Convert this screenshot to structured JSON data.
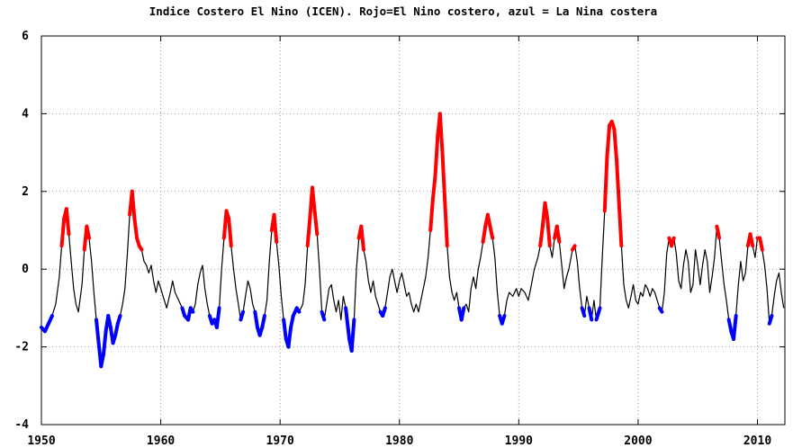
{
  "chart_data": {
    "type": "line",
    "title": "Indice Costero El Nino (ICEN). Rojo=El Nino costero, azul = La Nina costera",
    "xlabel": "",
    "ylabel": "",
    "xlim": [
      1950,
      2012.3
    ],
    "ylim": [
      -4,
      6
    ],
    "x_ticks": [
      1950,
      1960,
      1970,
      1980,
      1990,
      2000,
      2010
    ],
    "y_ticks": [
      -4,
      -2,
      0,
      2,
      4,
      6
    ],
    "x_tick_labels": [
      "1950",
      "1960",
      "1970",
      "1980",
      "1990",
      "2000",
      "2010"
    ],
    "y_tick_labels": [
      "-4",
      "-2",
      "0",
      "2",
      "4",
      "6"
    ],
    "grid": true,
    "colors": {
      "line": "#000000",
      "el_nino": "#ff0000",
      "la_nina": "#0000ff",
      "grid": "#999999"
    },
    "series": [
      {
        "points": [
          [
            1950.0,
            -1.5
          ],
          [
            1950.3,
            -1.6
          ],
          [
            1950.6,
            -1.4
          ],
          [
            1950.9,
            -1.2
          ],
          [
            1951.2,
            -0.9
          ],
          [
            1951.5,
            -0.2
          ],
          [
            1951.7,
            0.6
          ],
          [
            1951.9,
            1.3
          ],
          [
            1952.1,
            1.55
          ],
          [
            1952.3,
            0.9
          ],
          [
            1952.5,
            0.2
          ],
          [
            1952.7,
            -0.5
          ],
          [
            1952.9,
            -0.9
          ],
          [
            1953.1,
            -1.1
          ],
          [
            1953.4,
            -0.4
          ],
          [
            1953.6,
            0.5
          ],
          [
            1953.8,
            1.1
          ],
          [
            1954.0,
            0.8
          ],
          [
            1954.2,
            0.2
          ],
          [
            1954.4,
            -0.6
          ],
          [
            1954.6,
            -1.3
          ],
          [
            1954.8,
            -1.9
          ],
          [
            1955.0,
            -2.5
          ],
          [
            1955.2,
            -2.2
          ],
          [
            1955.4,
            -1.6
          ],
          [
            1955.6,
            -1.2
          ],
          [
            1955.8,
            -1.5
          ],
          [
            1956.0,
            -1.9
          ],
          [
            1956.2,
            -1.7
          ],
          [
            1956.4,
            -1.4
          ],
          [
            1956.6,
            -1.2
          ],
          [
            1956.8,
            -0.9
          ],
          [
            1957.0,
            -0.5
          ],
          [
            1957.2,
            0.4
          ],
          [
            1957.4,
            1.4
          ],
          [
            1957.6,
            2.0
          ],
          [
            1957.8,
            1.3
          ],
          [
            1958.0,
            0.8
          ],
          [
            1958.2,
            0.6
          ],
          [
            1958.4,
            0.5
          ],
          [
            1958.6,
            0.2
          ],
          [
            1958.8,
            0.1
          ],
          [
            1959.0,
            -0.1
          ],
          [
            1959.2,
            0.1
          ],
          [
            1959.4,
            -0.3
          ],
          [
            1959.6,
            -0.6
          ],
          [
            1959.8,
            -0.3
          ],
          [
            1960.0,
            -0.5
          ],
          [
            1960.2,
            -0.7
          ],
          [
            1960.5,
            -1.0
          ],
          [
            1960.8,
            -0.6
          ],
          [
            1961.0,
            -0.3
          ],
          [
            1961.2,
            -0.6
          ],
          [
            1961.5,
            -0.8
          ],
          [
            1961.8,
            -1.0
          ],
          [
            1962.0,
            -1.2
          ],
          [
            1962.3,
            -1.3
          ],
          [
            1962.5,
            -1.0
          ],
          [
            1962.7,
            -1.1
          ],
          [
            1962.9,
            -0.9
          ],
          [
            1963.1,
            -0.4
          ],
          [
            1963.3,
            -0.1
          ],
          [
            1963.5,
            0.1
          ],
          [
            1963.7,
            -0.5
          ],
          [
            1963.9,
            -0.9
          ],
          [
            1964.1,
            -1.2
          ],
          [
            1964.3,
            -1.4
          ],
          [
            1964.5,
            -1.3
          ],
          [
            1964.7,
            -1.5
          ],
          [
            1964.9,
            -1.0
          ],
          [
            1965.1,
            0.0
          ],
          [
            1965.3,
            0.8
          ],
          [
            1965.5,
            1.5
          ],
          [
            1965.7,
            1.3
          ],
          [
            1965.9,
            0.6
          ],
          [
            1966.1,
            0.0
          ],
          [
            1966.3,
            -0.5
          ],
          [
            1966.5,
            -0.9
          ],
          [
            1966.7,
            -1.3
          ],
          [
            1966.9,
            -1.1
          ],
          [
            1967.1,
            -0.7
          ],
          [
            1967.3,
            -0.3
          ],
          [
            1967.5,
            -0.5
          ],
          [
            1967.7,
            -0.9
          ],
          [
            1967.9,
            -1.1
          ],
          [
            1968.1,
            -1.5
          ],
          [
            1968.3,
            -1.7
          ],
          [
            1968.5,
            -1.5
          ],
          [
            1968.7,
            -1.2
          ],
          [
            1968.9,
            -0.8
          ],
          [
            1969.1,
            0.2
          ],
          [
            1969.3,
            1.0
          ],
          [
            1969.5,
            1.4
          ],
          [
            1969.7,
            0.7
          ],
          [
            1969.9,
            0.1
          ],
          [
            1970.1,
            -0.7
          ],
          [
            1970.3,
            -1.3
          ],
          [
            1970.5,
            -1.8
          ],
          [
            1970.7,
            -2.0
          ],
          [
            1970.9,
            -1.5
          ],
          [
            1971.1,
            -1.2
          ],
          [
            1971.4,
            -1.0
          ],
          [
            1971.6,
            -1.1
          ],
          [
            1971.9,
            -0.9
          ],
          [
            1972.1,
            -0.4
          ],
          [
            1972.3,
            0.6
          ],
          [
            1972.5,
            1.3
          ],
          [
            1972.7,
            2.1
          ],
          [
            1972.9,
            1.5
          ],
          [
            1973.1,
            0.9
          ],
          [
            1973.3,
            0.0
          ],
          [
            1973.5,
            -1.1
          ],
          [
            1973.7,
            -1.3
          ],
          [
            1973.9,
            -0.9
          ],
          [
            1974.1,
            -0.5
          ],
          [
            1974.3,
            -0.4
          ],
          [
            1974.5,
            -0.8
          ],
          [
            1974.7,
            -1.1
          ],
          [
            1974.9,
            -0.8
          ],
          [
            1975.1,
            -1.3
          ],
          [
            1975.3,
            -0.7
          ],
          [
            1975.5,
            -1.0
          ],
          [
            1975.8,
            -1.8
          ],
          [
            1976.0,
            -2.1
          ],
          [
            1976.2,
            -1.3
          ],
          [
            1976.4,
            0.0
          ],
          [
            1976.6,
            0.8
          ],
          [
            1976.8,
            1.1
          ],
          [
            1977.0,
            0.5
          ],
          [
            1977.2,
            0.2
          ],
          [
            1977.4,
            -0.3
          ],
          [
            1977.6,
            -0.6
          ],
          [
            1977.8,
            -0.3
          ],
          [
            1978.0,
            -0.7
          ],
          [
            1978.2,
            -0.9
          ],
          [
            1978.4,
            -1.1
          ],
          [
            1978.6,
            -1.2
          ],
          [
            1978.8,
            -1.0
          ],
          [
            1979.0,
            -0.6
          ],
          [
            1979.2,
            -0.2
          ],
          [
            1979.4,
            0.0
          ],
          [
            1979.6,
            -0.3
          ],
          [
            1979.8,
            -0.6
          ],
          [
            1980.0,
            -0.3
          ],
          [
            1980.2,
            -0.1
          ],
          [
            1980.4,
            -0.4
          ],
          [
            1980.6,
            -0.7
          ],
          [
            1980.8,
            -0.6
          ],
          [
            1981.0,
            -0.9
          ],
          [
            1981.2,
            -1.1
          ],
          [
            1981.4,
            -0.9
          ],
          [
            1981.6,
            -1.1
          ],
          [
            1981.8,
            -0.8
          ],
          [
            1982.0,
            -0.5
          ],
          [
            1982.2,
            -0.2
          ],
          [
            1982.4,
            0.3
          ],
          [
            1982.6,
            1.0
          ],
          [
            1982.8,
            1.8
          ],
          [
            1983.0,
            2.4
          ],
          [
            1983.2,
            3.4
          ],
          [
            1983.4,
            4.0
          ],
          [
            1983.6,
            3.0
          ],
          [
            1983.8,
            1.8
          ],
          [
            1984.0,
            0.6
          ],
          [
            1984.2,
            -0.2
          ],
          [
            1984.4,
            -0.6
          ],
          [
            1984.6,
            -0.8
          ],
          [
            1984.8,
            -0.6
          ],
          [
            1985.0,
            -1.0
          ],
          [
            1985.2,
            -1.3
          ],
          [
            1985.4,
            -1.0
          ],
          [
            1985.6,
            -0.9
          ],
          [
            1985.8,
            -1.1
          ],
          [
            1986.0,
            -0.5
          ],
          [
            1986.2,
            -0.2
          ],
          [
            1986.4,
            -0.5
          ],
          [
            1986.6,
            0.0
          ],
          [
            1986.8,
            0.3
          ],
          [
            1987.0,
            0.7
          ],
          [
            1987.2,
            1.1
          ],
          [
            1987.4,
            1.4
          ],
          [
            1987.6,
            1.1
          ],
          [
            1987.8,
            0.8
          ],
          [
            1988.0,
            0.3
          ],
          [
            1988.2,
            -0.6
          ],
          [
            1988.4,
            -1.2
          ],
          [
            1988.6,
            -1.4
          ],
          [
            1988.8,
            -1.2
          ],
          [
            1989.0,
            -0.8
          ],
          [
            1989.2,
            -0.6
          ],
          [
            1989.5,
            -0.7
          ],
          [
            1989.8,
            -0.5
          ],
          [
            1990.0,
            -0.7
          ],
          [
            1990.2,
            -0.5
          ],
          [
            1990.5,
            -0.6
          ],
          [
            1990.8,
            -0.8
          ],
          [
            1991.0,
            -0.5
          ],
          [
            1991.3,
            0.0
          ],
          [
            1991.6,
            0.3
          ],
          [
            1991.8,
            0.6
          ],
          [
            1992.0,
            1.1
          ],
          [
            1992.2,
            1.7
          ],
          [
            1992.4,
            1.3
          ],
          [
            1992.6,
            0.6
          ],
          [
            1992.8,
            0.3
          ],
          [
            1993.0,
            0.8
          ],
          [
            1993.2,
            1.1
          ],
          [
            1993.4,
            0.7
          ],
          [
            1993.6,
            0.1
          ],
          [
            1993.8,
            -0.5
          ],
          [
            1994.0,
            -0.2
          ],
          [
            1994.2,
            0.0
          ],
          [
            1994.5,
            0.5
          ],
          [
            1994.7,
            0.6
          ],
          [
            1994.9,
            0.2
          ],
          [
            1995.1,
            -0.5
          ],
          [
            1995.3,
            -1.0
          ],
          [
            1995.5,
            -1.2
          ],
          [
            1995.7,
            -0.7
          ],
          [
            1995.9,
            -1.0
          ],
          [
            1996.1,
            -1.3
          ],
          [
            1996.3,
            -0.8
          ],
          [
            1996.5,
            -1.3
          ],
          [
            1996.8,
            -1.0
          ],
          [
            1997.0,
            0.3
          ],
          [
            1997.2,
            1.5
          ],
          [
            1997.4,
            2.9
          ],
          [
            1997.6,
            3.7
          ],
          [
            1997.8,
            3.8
          ],
          [
            1998.0,
            3.6
          ],
          [
            1998.2,
            2.8
          ],
          [
            1998.4,
            1.7
          ],
          [
            1998.6,
            0.6
          ],
          [
            1998.8,
            -0.4
          ],
          [
            1999.0,
            -0.8
          ],
          [
            1999.2,
            -1.0
          ],
          [
            1999.4,
            -0.7
          ],
          [
            1999.6,
            -0.4
          ],
          [
            1999.8,
            -0.8
          ],
          [
            2000.0,
            -0.9
          ],
          [
            2000.2,
            -0.6
          ],
          [
            2000.4,
            -0.7
          ],
          [
            2000.6,
            -0.4
          ],
          [
            2000.8,
            -0.5
          ],
          [
            2001.0,
            -0.7
          ],
          [
            2001.2,
            -0.5
          ],
          [
            2001.4,
            -0.6
          ],
          [
            2001.6,
            -0.8
          ],
          [
            2001.8,
            -1.0
          ],
          [
            2002.0,
            -1.1
          ],
          [
            2002.2,
            -0.6
          ],
          [
            2002.4,
            0.4
          ],
          [
            2002.6,
            0.8
          ],
          [
            2002.8,
            0.6
          ],
          [
            2003.0,
            0.8
          ],
          [
            2003.2,
            0.4
          ],
          [
            2003.4,
            -0.3
          ],
          [
            2003.6,
            -0.5
          ],
          [
            2003.8,
            0.1
          ],
          [
            2004.0,
            0.5
          ],
          [
            2004.2,
            0.2
          ],
          [
            2004.4,
            -0.6
          ],
          [
            2004.6,
            -0.4
          ],
          [
            2004.8,
            0.5
          ],
          [
            2005.0,
            0.1
          ],
          [
            2005.2,
            -0.4
          ],
          [
            2005.4,
            0.1
          ],
          [
            2005.6,
            0.5
          ],
          [
            2005.8,
            0.2
          ],
          [
            2006.0,
            -0.6
          ],
          [
            2006.2,
            -0.2
          ],
          [
            2006.4,
            0.3
          ],
          [
            2006.6,
            1.1
          ],
          [
            2006.8,
            0.8
          ],
          [
            2007.0,
            0.2
          ],
          [
            2007.2,
            -0.4
          ],
          [
            2007.4,
            -0.8
          ],
          [
            2007.6,
            -1.3
          ],
          [
            2007.8,
            -1.6
          ],
          [
            2008.0,
            -1.8
          ],
          [
            2008.2,
            -1.2
          ],
          [
            2008.4,
            -0.4
          ],
          [
            2008.6,
            0.2
          ],
          [
            2008.8,
            -0.3
          ],
          [
            2009.0,
            -0.1
          ],
          [
            2009.2,
            0.6
          ],
          [
            2009.4,
            0.9
          ],
          [
            2009.6,
            0.6
          ],
          [
            2009.8,
            0.3
          ],
          [
            2010.0,
            0.8
          ],
          [
            2010.2,
            0.8
          ],
          [
            2010.4,
            0.5
          ],
          [
            2010.6,
            0.1
          ],
          [
            2010.8,
            -0.5
          ],
          [
            2011.0,
            -1.4
          ],
          [
            2011.2,
            -1.2
          ],
          [
            2011.4,
            -0.7
          ],
          [
            2011.6,
            -0.3
          ],
          [
            2011.8,
            -0.1
          ],
          [
            2012.0,
            -0.6
          ],
          [
            2012.2,
            -1.0
          ]
        ]
      }
    ]
  }
}
